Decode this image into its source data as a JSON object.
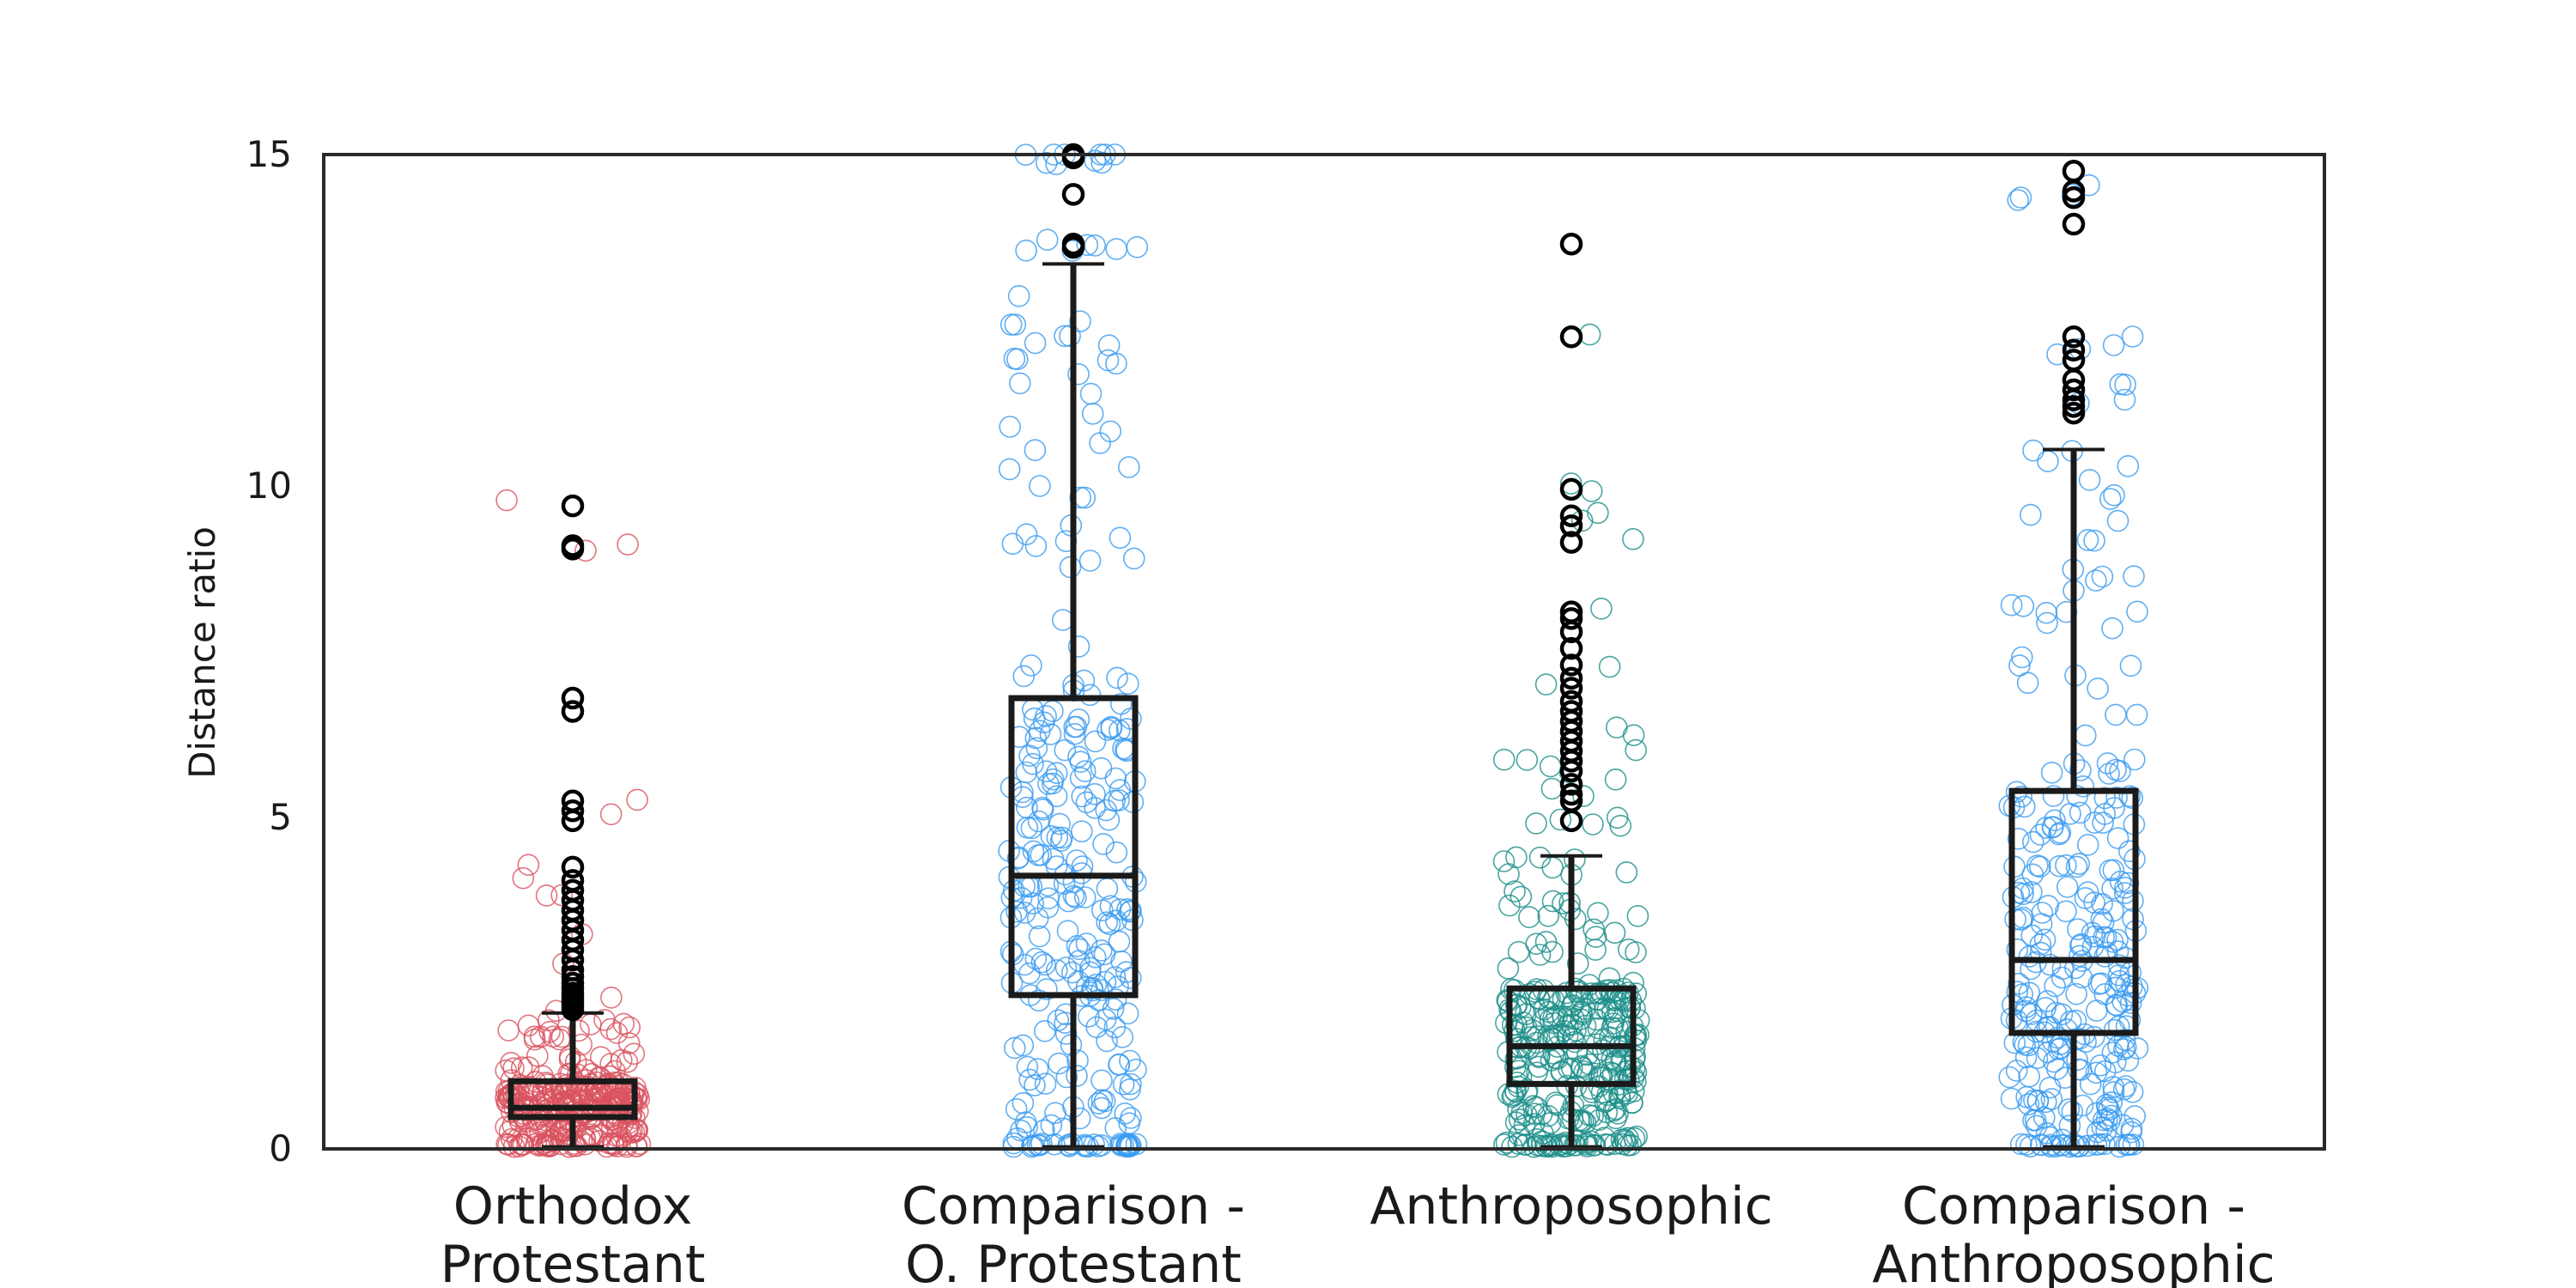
{
  "chart_data": {
    "type": "box",
    "ylabel": "Distance ratio",
    "ylim": [
      0,
      15
    ],
    "yticks": [
      0,
      5,
      10,
      15
    ],
    "grid": false,
    "categories": [
      {
        "label_lines": [
          "Orthodox",
          "Protestant"
        ]
      },
      {
        "label_lines": [
          "Comparison -",
          "O. Protestant"
        ]
      },
      {
        "label_lines": [
          "Anthroposophic"
        ]
      },
      {
        "label_lines": [
          "Comparison -",
          "Anthroposophic"
        ]
      }
    ],
    "colors": {
      "box": "#1a1a1a",
      "outlier": "#000000",
      "points": [
        "#d9535f",
        "#3a9bf0",
        "#1b8f8a",
        "#3a9bf0"
      ]
    },
    "series": [
      {
        "whisker_low": 0.03,
        "q1": 0.48,
        "median": 0.62,
        "q3": 1.02,
        "whisker_high": 2.05,
        "outliers": [
          2.1,
          2.15,
          2.2,
          2.25,
          2.3,
          2.35,
          2.42,
          2.5,
          2.6,
          2.7,
          2.85,
          3.0,
          3.15,
          3.3,
          3.45,
          3.6,
          3.75,
          3.9,
          4.05,
          4.25,
          4.95,
          5.1,
          5.25,
          6.6,
          6.8,
          9.05,
          9.1,
          9.7
        ],
        "points_count": 320,
        "points_spread": 1.05
      },
      {
        "whisker_low": 0.03,
        "q1": 2.32,
        "median": 4.12,
        "q3": 6.8,
        "whisker_high": 13.35,
        "outliers": [
          13.6,
          13.65,
          14.4,
          14.95,
          15.0
        ],
        "points_count": 300,
        "points_spread": 1.0
      },
      {
        "whisker_low": 0.03,
        "q1": 0.98,
        "median": 1.55,
        "q3": 2.42,
        "whisker_high": 4.42,
        "outliers": [
          4.95,
          5.25,
          5.35,
          5.5,
          5.7,
          5.85,
          6.0,
          6.15,
          6.3,
          6.45,
          6.6,
          6.75,
          6.95,
          7.1,
          7.3,
          7.55,
          7.8,
          8.0,
          8.1,
          9.15,
          9.4,
          9.55,
          9.95,
          12.25,
          13.65
        ],
        "points_count": 330,
        "points_spread": 1.05
      },
      {
        "whisker_low": 0.03,
        "q1": 1.75,
        "median": 2.85,
        "q3": 5.4,
        "whisker_high": 10.55,
        "outliers": [
          11.1,
          11.2,
          11.3,
          11.45,
          11.6,
          11.9,
          12.05,
          12.25,
          13.95,
          14.35,
          14.45,
          14.75
        ],
        "points_count": 300,
        "points_spread": 1.0
      }
    ]
  }
}
